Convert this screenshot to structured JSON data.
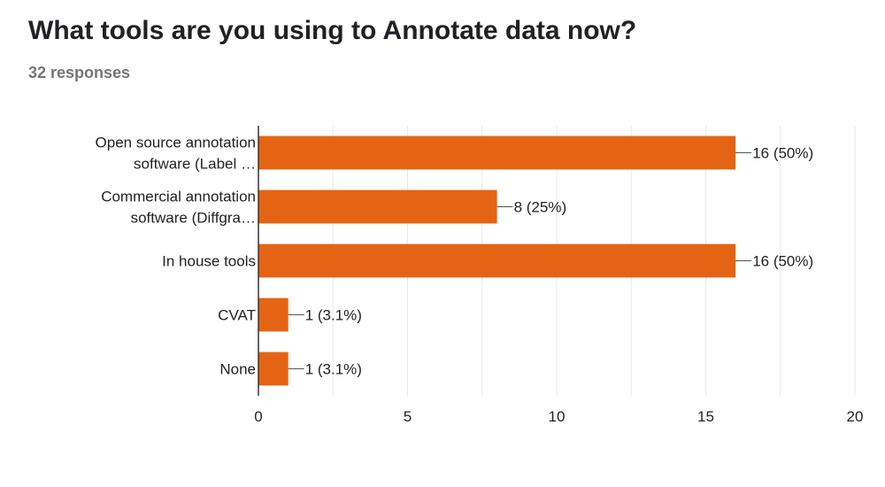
{
  "header": {
    "title": "What tools are you using to Annotate data now?",
    "responses": "32 responses"
  },
  "colors": {
    "bar": "#e46414",
    "grid": "#e8e8e8",
    "axis": "#333333",
    "leader": "#555555"
  },
  "chart_data": {
    "type": "bar",
    "orientation": "horizontal",
    "title": "",
    "xlabel": "",
    "ylabel": "",
    "xlim": [
      0,
      20
    ],
    "xticks": [
      0,
      5,
      10,
      15,
      20
    ],
    "grid": true,
    "legend": "none",
    "categories": [
      [
        "Open source annotation",
        "software (Label …"
      ],
      [
        "Commercial annotation",
        "software (Diffgra…"
      ],
      [
        "In house tools"
      ],
      [
        "CVAT"
      ],
      [
        "None"
      ]
    ],
    "values": [
      16,
      8,
      16,
      1,
      1
    ],
    "labels": [
      "16 (50%)",
      "8 (25%)",
      "16 (50%)",
      "1 (3.1%)",
      "1 (3.1%)"
    ]
  }
}
